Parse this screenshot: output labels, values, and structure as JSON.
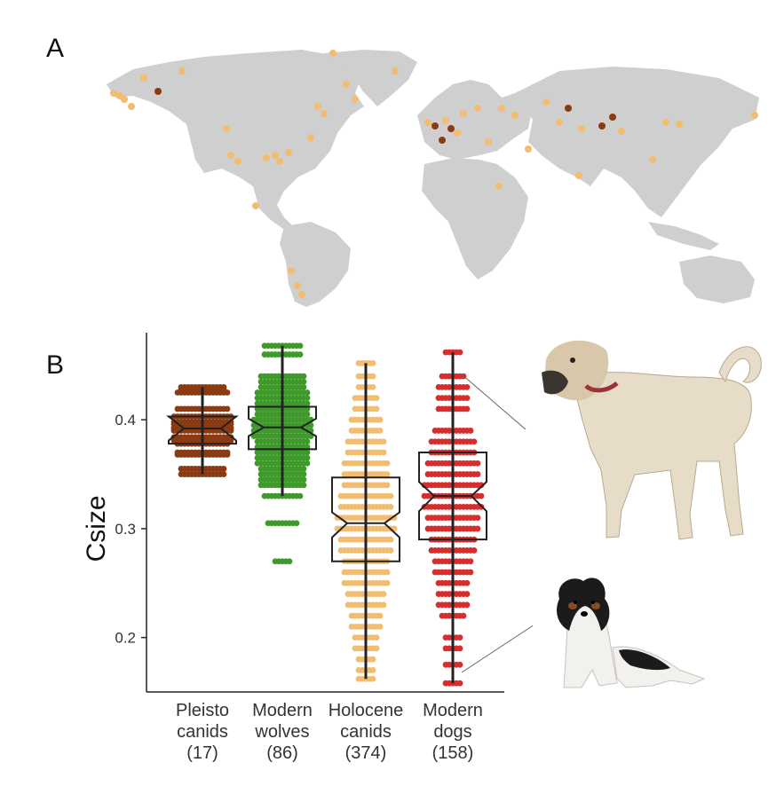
{
  "panels": {
    "a": "A",
    "b": "B"
  },
  "colors": {
    "land": "#cfcfcf",
    "site_holocene": "#f2bd6e",
    "site_pleisto": "#8b3a12",
    "pleisto": "#8b3a12",
    "wolves": "#3f9a2b",
    "holocene": "#f2bd6e",
    "dogs": "#d62d2d",
    "box_edge": "#222222"
  },
  "icons": {
    "large_dog": "large-dog-photo",
    "small_dog": "small-dog-photo"
  },
  "chart_data": {
    "type": "boxplot",
    "ylabel": "Csize",
    "ylim": [
      0.15,
      0.48
    ],
    "yticks": [
      0.2,
      0.3,
      0.4
    ],
    "grid": false,
    "groups": [
      {
        "label": [
          "Pleisto",
          "canids",
          "(17)"
        ],
        "color": "#8b3a12",
        "min": 0.35,
        "q1": 0.378,
        "median": 0.392,
        "q3": 0.403,
        "max": 0.43,
        "notch_low": 0.381,
        "notch_high": 0.403,
        "points": [
          0.43,
          0.428,
          0.425,
          0.41,
          0.403,
          0.398,
          0.396,
          0.393,
          0.392,
          0.39,
          0.384,
          0.381,
          0.37,
          0.368,
          0.355,
          0.35,
          0.378
        ]
      },
      {
        "label": [
          "Modern",
          "wolves",
          "(86)"
        ],
        "color": "#3f9a2b",
        "min": 0.33,
        "q1": 0.373,
        "median": 0.393,
        "q3": 0.412,
        "max": 0.468,
        "notch_low": 0.385,
        "notch_high": 0.401,
        "points": [
          0.468,
          0.46,
          0.44,
          0.435,
          0.43,
          0.425,
          0.42,
          0.415,
          0.41,
          0.405,
          0.4,
          0.395,
          0.39,
          0.385,
          0.38,
          0.375,
          0.37,
          0.365,
          0.36,
          0.355,
          0.35,
          0.345,
          0.34,
          0.33,
          0.305,
          0.27
        ]
      },
      {
        "label": [
          "Holocene",
          "canids",
          "(374)"
        ],
        "color": "#f2bd6e",
        "min": 0.162,
        "q1": 0.27,
        "median": 0.305,
        "q3": 0.347,
        "max": 0.452,
        "notch_low": 0.292,
        "notch_high": 0.315,
        "points": [
          0.452,
          0.44,
          0.43,
          0.42,
          0.41,
          0.4,
          0.39,
          0.38,
          0.37,
          0.36,
          0.35,
          0.34,
          0.33,
          0.32,
          0.31,
          0.3,
          0.29,
          0.28,
          0.27,
          0.26,
          0.25,
          0.24,
          0.23,
          0.22,
          0.21,
          0.2,
          0.19,
          0.18,
          0.17,
          0.162
        ]
      },
      {
        "label": [
          "Modern",
          "dogs",
          "(158)"
        ],
        "color": "#d62d2d",
        "min": 0.158,
        "q1": 0.29,
        "median": 0.33,
        "q3": 0.37,
        "max": 0.462,
        "notch_low": 0.316,
        "notch_high": 0.343,
        "points": [
          0.462,
          0.44,
          0.43,
          0.42,
          0.41,
          0.39,
          0.38,
          0.37,
          0.36,
          0.35,
          0.34,
          0.33,
          0.32,
          0.31,
          0.3,
          0.29,
          0.28,
          0.27,
          0.26,
          0.25,
          0.24,
          0.23,
          0.22,
          0.2,
          0.19,
          0.175,
          0.158
        ]
      }
    ]
  }
}
